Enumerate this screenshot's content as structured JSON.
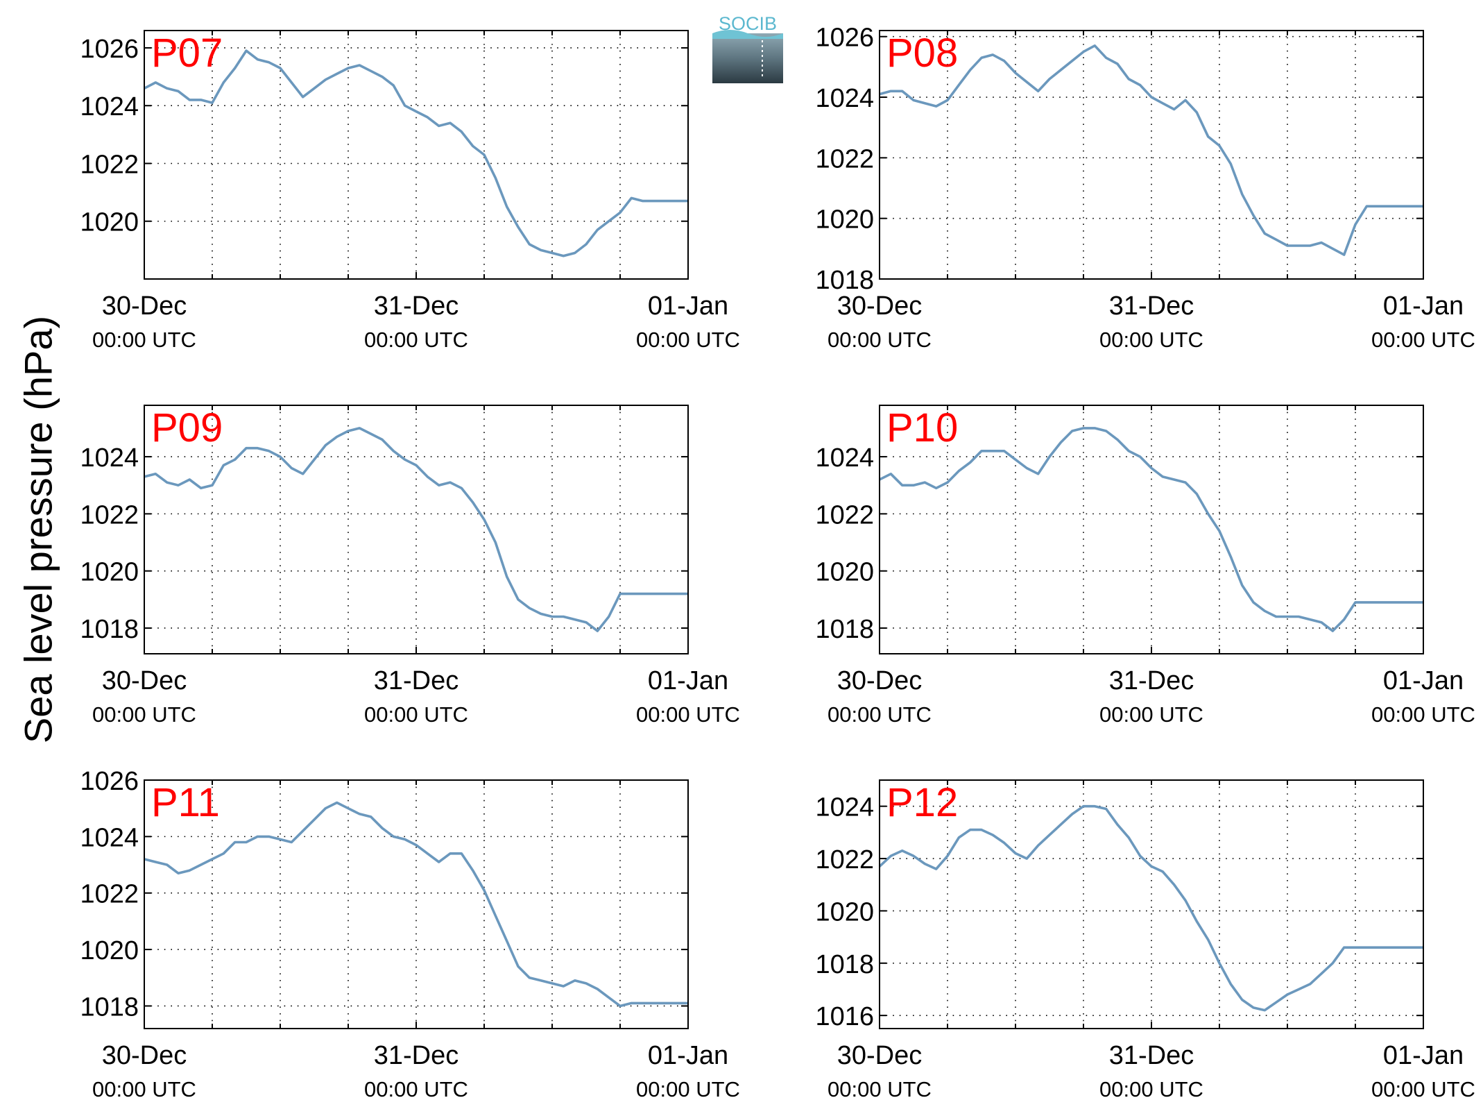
{
  "ylabel": "Sea level pressure (hPa)",
  "logo_text": "SOCIB",
  "colors": {
    "line": "#6b98bd",
    "station_label": "#ff0000",
    "axis": "#000000"
  },
  "chart_data": [
    {
      "type": "line",
      "title": "P07",
      "grid": true,
      "x_ticks": [
        {
          "date": "30-Dec",
          "time": "00:00 UTC"
        },
        {
          "date": "31-Dec",
          "time": "00:00 UTC"
        },
        {
          "date": "01-Jan",
          "time": "00:00 UTC"
        }
      ],
      "x_range_hours": [
        0,
        48
      ],
      "ylim": [
        1018.0,
        1026.6
      ],
      "y_ticks": [
        1020,
        1022,
        1024,
        1026
      ],
      "series": [
        {
          "x_hours": [
            0,
            1,
            2,
            3,
            4,
            5,
            6,
            7,
            8,
            9,
            10,
            11,
            12,
            13,
            14,
            15,
            16,
            17,
            18,
            19,
            20,
            21,
            22,
            23,
            24,
            25,
            26,
            27,
            28,
            29,
            30,
            31,
            32,
            33,
            34,
            35,
            36,
            37,
            38,
            39,
            40,
            41,
            42,
            43,
            44,
            45,
            46,
            47,
            48
          ],
          "values": [
            1024.6,
            1024.8,
            1024.6,
            1024.5,
            1024.2,
            1024.2,
            1024.1,
            1024.8,
            1025.3,
            1025.9,
            1025.6,
            1025.5,
            1025.3,
            1024.8,
            1024.3,
            1024.6,
            1024.9,
            1025.1,
            1025.3,
            1025.4,
            1025.2,
            1025.0,
            1024.7,
            1024.0,
            1023.8,
            1023.6,
            1023.3,
            1023.4,
            1023.1,
            1022.6,
            1022.3,
            1021.5,
            1020.5,
            1019.8,
            1019.2,
            1019.0,
            1018.9,
            1018.8,
            1018.9,
            1019.2,
            1019.7,
            1020.0,
            1020.3,
            1020.8,
            1020.7,
            1020.7,
            1020.7,
            1020.7,
            1020.7
          ]
        }
      ]
    },
    {
      "type": "line",
      "title": "P08",
      "grid": true,
      "x_ticks": [
        {
          "date": "30-Dec",
          "time": "00:00 UTC"
        },
        {
          "date": "31-Dec",
          "time": "00:00 UTC"
        },
        {
          "date": "01-Jan",
          "time": "00:00 UTC"
        }
      ],
      "x_range_hours": [
        0,
        48
      ],
      "ylim": [
        1018.0,
        1026.2
      ],
      "y_ticks": [
        1018,
        1020,
        1022,
        1024,
        1026
      ],
      "series": [
        {
          "x_hours": [
            0,
            1,
            2,
            3,
            4,
            5,
            6,
            7,
            8,
            9,
            10,
            11,
            12,
            13,
            14,
            15,
            16,
            17,
            18,
            19,
            20,
            21,
            22,
            23,
            24,
            25,
            26,
            27,
            28,
            29,
            30,
            31,
            32,
            33,
            34,
            35,
            36,
            37,
            38,
            39,
            40,
            41,
            42,
            43,
            44,
            45,
            46,
            47,
            48
          ],
          "values": [
            1024.1,
            1024.2,
            1024.2,
            1023.9,
            1023.8,
            1023.7,
            1023.9,
            1024.4,
            1024.9,
            1025.3,
            1025.4,
            1025.2,
            1024.8,
            1024.5,
            1024.2,
            1024.6,
            1024.9,
            1025.2,
            1025.5,
            1025.7,
            1025.3,
            1025.1,
            1024.6,
            1024.4,
            1024.0,
            1023.8,
            1023.6,
            1023.9,
            1023.5,
            1022.7,
            1022.4,
            1021.8,
            1020.8,
            1020.1,
            1019.5,
            1019.3,
            1019.1,
            1019.1,
            1019.1,
            1019.2,
            1019.0,
            1018.8,
            1019.8,
            1020.4,
            1020.4,
            1020.4,
            1020.4,
            1020.4,
            1020.4
          ]
        }
      ]
    },
    {
      "type": "line",
      "title": "P09",
      "grid": true,
      "x_ticks": [
        {
          "date": "30-Dec",
          "time": "00:00 UTC"
        },
        {
          "date": "31-Dec",
          "time": "00:00 UTC"
        },
        {
          "date": "01-Jan",
          "time": "00:00 UTC"
        }
      ],
      "x_range_hours": [
        0,
        48
      ],
      "ylim": [
        1017.1,
        1025.8
      ],
      "y_ticks": [
        1018,
        1020,
        1022,
        1024
      ],
      "series": [
        {
          "x_hours": [
            0,
            1,
            2,
            3,
            4,
            5,
            6,
            7,
            8,
            9,
            10,
            11,
            12,
            13,
            14,
            15,
            16,
            17,
            18,
            19,
            20,
            21,
            22,
            23,
            24,
            25,
            26,
            27,
            28,
            29,
            30,
            31,
            32,
            33,
            34,
            35,
            36,
            37,
            38,
            39,
            40,
            41,
            42,
            43,
            44,
            45,
            46,
            47,
            48
          ],
          "values": [
            1023.3,
            1023.4,
            1023.1,
            1023.0,
            1023.2,
            1022.9,
            1023.0,
            1023.7,
            1023.9,
            1024.3,
            1024.3,
            1024.2,
            1024.0,
            1023.6,
            1023.4,
            1023.9,
            1024.4,
            1024.7,
            1024.9,
            1025.0,
            1024.8,
            1024.6,
            1024.2,
            1023.9,
            1023.7,
            1023.3,
            1023.0,
            1023.1,
            1022.9,
            1022.4,
            1021.8,
            1021.0,
            1019.8,
            1019.0,
            1018.7,
            1018.5,
            1018.4,
            1018.4,
            1018.3,
            1018.2,
            1017.9,
            1018.4,
            1019.2,
            1019.2,
            1019.2,
            1019.2,
            1019.2,
            1019.2,
            1019.2
          ]
        }
      ]
    },
    {
      "type": "line",
      "title": "P10",
      "grid": true,
      "x_ticks": [
        {
          "date": "30-Dec",
          "time": "00:00 UTC"
        },
        {
          "date": "31-Dec",
          "time": "00:00 UTC"
        },
        {
          "date": "01-Jan",
          "time": "00:00 UTC"
        }
      ],
      "x_range_hours": [
        0,
        48
      ],
      "ylim": [
        1017.1,
        1025.8
      ],
      "y_ticks": [
        1018,
        1020,
        1022,
        1024
      ],
      "series": [
        {
          "x_hours": [
            0,
            1,
            2,
            3,
            4,
            5,
            6,
            7,
            8,
            9,
            10,
            11,
            12,
            13,
            14,
            15,
            16,
            17,
            18,
            19,
            20,
            21,
            22,
            23,
            24,
            25,
            26,
            27,
            28,
            29,
            30,
            31,
            32,
            33,
            34,
            35,
            36,
            37,
            38,
            39,
            40,
            41,
            42,
            43,
            44,
            45,
            46,
            47,
            48
          ],
          "values": [
            1023.2,
            1023.4,
            1023.0,
            1023.0,
            1023.1,
            1022.9,
            1023.1,
            1023.5,
            1023.8,
            1024.2,
            1024.2,
            1024.2,
            1023.9,
            1023.6,
            1023.4,
            1024.0,
            1024.5,
            1024.9,
            1025.0,
            1025.0,
            1024.9,
            1024.6,
            1024.2,
            1024.0,
            1023.6,
            1023.3,
            1023.2,
            1023.1,
            1022.7,
            1022.0,
            1021.4,
            1020.5,
            1019.5,
            1018.9,
            1018.6,
            1018.4,
            1018.4,
            1018.4,
            1018.3,
            1018.2,
            1017.9,
            1018.3,
            1018.9,
            1018.9,
            1018.9,
            1018.9,
            1018.9,
            1018.9,
            1018.9
          ]
        }
      ]
    },
    {
      "type": "line",
      "title": "P11",
      "grid": true,
      "x_ticks": [
        {
          "date": "30-Dec",
          "time": "00:00 UTC"
        },
        {
          "date": "31-Dec",
          "time": "00:00 UTC"
        },
        {
          "date": "01-Jan",
          "time": "00:00 UTC"
        }
      ],
      "x_range_hours": [
        0,
        48
      ],
      "ylim": [
        1017.2,
        1026.0
      ],
      "y_ticks": [
        1018,
        1020,
        1022,
        1024,
        1026
      ],
      "series": [
        {
          "x_hours": [
            0,
            1,
            2,
            3,
            4,
            5,
            6,
            7,
            8,
            9,
            10,
            11,
            12,
            13,
            14,
            15,
            16,
            17,
            18,
            19,
            20,
            21,
            22,
            23,
            24,
            25,
            26,
            27,
            28,
            29,
            30,
            31,
            32,
            33,
            34,
            35,
            36,
            37,
            38,
            39,
            40,
            41,
            42,
            43,
            44,
            45,
            46,
            47,
            48
          ],
          "values": [
            1023.2,
            1023.1,
            1023.0,
            1022.7,
            1022.8,
            1023.0,
            1023.2,
            1023.4,
            1023.8,
            1023.8,
            1024.0,
            1024.0,
            1023.9,
            1023.8,
            1024.2,
            1024.6,
            1025.0,
            1025.2,
            1025.0,
            1024.8,
            1024.7,
            1024.3,
            1024.0,
            1023.9,
            1023.7,
            1023.4,
            1023.1,
            1023.4,
            1023.4,
            1022.8,
            1022.1,
            1021.2,
            1020.3,
            1019.4,
            1019.0,
            1018.9,
            1018.8,
            1018.7,
            1018.9,
            1018.8,
            1018.6,
            1018.3,
            1018.0,
            1018.1,
            1018.1,
            1018.1,
            1018.1,
            1018.1,
            1018.1
          ]
        }
      ]
    },
    {
      "type": "line",
      "title": "P12",
      "grid": true,
      "x_ticks": [
        {
          "date": "30-Dec",
          "time": "00:00 UTC"
        },
        {
          "date": "31-Dec",
          "time": "00:00 UTC"
        },
        {
          "date": "01-Jan",
          "time": "00:00 UTC"
        }
      ],
      "x_range_hours": [
        0,
        48
      ],
      "ylim": [
        1015.5,
        1025.0
      ],
      "y_ticks": [
        1016,
        1018,
        1020,
        1022,
        1024
      ],
      "series": [
        {
          "x_hours": [
            0,
            1,
            2,
            3,
            4,
            5,
            6,
            7,
            8,
            9,
            10,
            11,
            12,
            13,
            14,
            15,
            16,
            17,
            18,
            19,
            20,
            21,
            22,
            23,
            24,
            25,
            26,
            27,
            28,
            29,
            30,
            31,
            32,
            33,
            34,
            35,
            36,
            37,
            38,
            39,
            40,
            41,
            42,
            43,
            44,
            45,
            46,
            47,
            48
          ],
          "values": [
            1021.7,
            1022.1,
            1022.3,
            1022.1,
            1021.8,
            1021.6,
            1022.1,
            1022.8,
            1023.1,
            1023.1,
            1022.9,
            1022.6,
            1022.2,
            1022.0,
            1022.5,
            1022.9,
            1023.3,
            1023.7,
            1024.0,
            1024.0,
            1023.9,
            1023.3,
            1022.8,
            1022.1,
            1021.7,
            1021.5,
            1021.0,
            1020.4,
            1019.6,
            1018.9,
            1018.0,
            1017.2,
            1016.6,
            1016.3,
            1016.2,
            1016.5,
            1016.8,
            1017.0,
            1017.2,
            1017.6,
            1018.0,
            1018.6,
            1018.6,
            1018.6,
            1018.6,
            1018.6,
            1018.6,
            1018.6,
            1018.6
          ]
        }
      ]
    }
  ]
}
